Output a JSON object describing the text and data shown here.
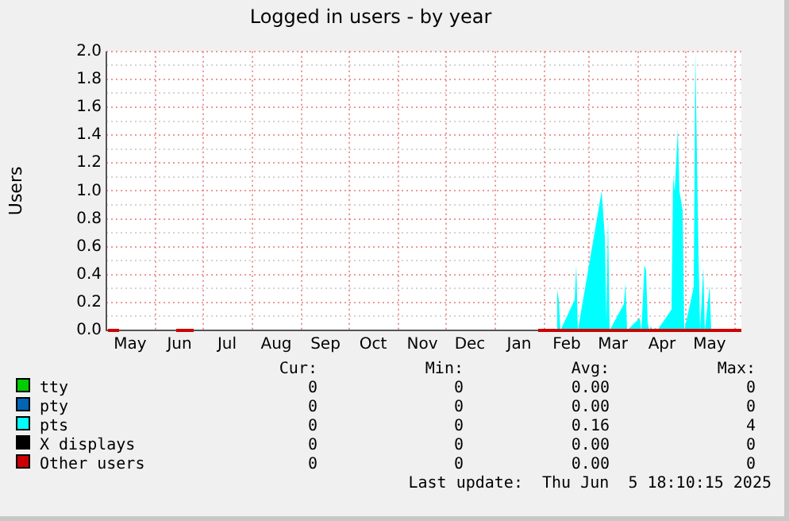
{
  "chart_data": {
    "type": "line",
    "title": "Logged in users - by year",
    "ylabel": "Users",
    "xlim": [
      "2024-05-01",
      "2025-06-05"
    ],
    "xticks": [
      {
        "value": "2024-05-16",
        "label": "May"
      },
      {
        "value": "2024-06-01",
        "label": null
      },
      {
        "value": "2024-06-16",
        "label": "Jun"
      },
      {
        "value": "2024-07-01",
        "label": null
      },
      {
        "value": "2024-07-16",
        "label": "Jul"
      },
      {
        "value": "2024-08-01",
        "label": null
      },
      {
        "value": "2024-08-16",
        "label": "Aug"
      },
      {
        "value": "2024-09-01",
        "label": null
      },
      {
        "value": "2024-09-16",
        "label": "Sep"
      },
      {
        "value": "2024-10-01",
        "label": null
      },
      {
        "value": "2024-10-16",
        "label": "Oct"
      },
      {
        "value": "2024-11-01",
        "label": null
      },
      {
        "value": "2024-11-16",
        "label": "Nov"
      },
      {
        "value": "2024-12-01",
        "label": null
      },
      {
        "value": "2024-12-16",
        "label": "Dec"
      },
      {
        "value": "2025-01-01",
        "label": null
      },
      {
        "value": "2025-01-16",
        "label": "Jan"
      },
      {
        "value": "2025-02-01",
        "label": null
      },
      {
        "value": "2025-02-15",
        "label": "Feb"
      },
      {
        "value": "2025-03-01",
        "label": null
      },
      {
        "value": "2025-03-16",
        "label": "Mar"
      },
      {
        "value": "2025-04-01",
        "label": null
      },
      {
        "value": "2025-04-16",
        "label": "Apr"
      },
      {
        "value": "2025-05-01",
        "label": null
      },
      {
        "value": "2025-05-16",
        "label": "May"
      },
      {
        "value": "2025-06-01",
        "label": null
      }
    ],
    "ylim": [
      0,
      2
    ],
    "yticks": [
      {
        "value": 0,
        "label": "0.0"
      },
      {
        "value": 0.1,
        "label": null
      },
      {
        "value": 0.2,
        "label": "0.2"
      },
      {
        "value": 0.3,
        "label": null
      },
      {
        "value": 0.4,
        "label": "0.4"
      },
      {
        "value": 0.5,
        "label": null
      },
      {
        "value": 0.6,
        "label": "0.6"
      },
      {
        "value": 0.7,
        "label": null
      },
      {
        "value": 0.8,
        "label": "0.8"
      },
      {
        "value": 0.9,
        "label": null
      },
      {
        "value": 1,
        "label": "1.0"
      },
      {
        "value": 1.1,
        "label": null
      },
      {
        "value": 1.2,
        "label": "1.2"
      },
      {
        "value": 1.3,
        "label": null
      },
      {
        "value": 1.4,
        "label": "1.4"
      },
      {
        "value": 1.5,
        "label": null
      },
      {
        "value": 1.6,
        "label": "1.6"
      },
      {
        "value": 1.7,
        "label": null
      },
      {
        "value": 1.8,
        "label": "1.8"
      },
      {
        "value": 1.9,
        "label": null
      },
      {
        "value": 2,
        "label": "2.0"
      }
    ],
    "grid": true,
    "legend": "bottom",
    "series": [
      {
        "name": "tty",
        "color": "#00cc00"
      },
      {
        "name": "pty",
        "color": "#0066b3"
      },
      {
        "name": "pts",
        "color": "#00ffff",
        "type": "area",
        "x": [
          "2025-02-09",
          "2025-02-10",
          "2025-02-11",
          "2025-02-20",
          "2025-02-21",
          "2025-02-22",
          "2025-03-09",
          "2025-03-11",
          "2025-03-12",
          "2025-03-13",
          "2025-03-14",
          "2025-03-23",
          "2025-03-24",
          "2025-03-25",
          "2025-04-02",
          "2025-04-03",
          "2025-04-05",
          "2025-04-06",
          "2025-04-07",
          "2025-04-08",
          "2025-04-09",
          "2025-04-10",
          "2025-04-12",
          "2025-04-13",
          "2025-04-22",
          "2025-04-23",
          "2025-04-24",
          "2025-04-26",
          "2025-04-27",
          "2025-04-29",
          "2025-04-30",
          "2025-05-06",
          "2025-05-07",
          "2025-05-09",
          "2025-05-10",
          "2025-05-12",
          "2025-05-13",
          "2025-05-16",
          "2025-05-17"
        ],
        "values": [
          0.29,
          0.22,
          0,
          0.22,
          0.47,
          0,
          1.0,
          0.67,
          0.07,
          0.8,
          0,
          0.19,
          0.34,
          0,
          0.09,
          0,
          0.47,
          0.43,
          0.05,
          0,
          0.03,
          0,
          0.02,
          0,
          0.15,
          1.1,
          1.0,
          1.45,
          1.0,
          0.86,
          0,
          0.31,
          2.0,
          0.54,
          0,
          0.45,
          0,
          0.32,
          0
        ]
      },
      {
        "name": "X displays",
        "color": "#000000"
      },
      {
        "name": "Other users",
        "color": "#cc0000",
        "x": [
          "2024-05-02",
          "2024-05-09",
          "2024-05-10",
          "2024-06-14",
          "2024-06-25",
          "2024-06-26",
          "2025-01-28",
          "2025-06-05"
        ],
        "values": [
          0,
          0,
          null,
          0,
          0,
          null,
          0,
          0
        ]
      }
    ],
    "annotations": [
      "Cur:",
      "Min:",
      "Avg:",
      "Max:",
      "0",
      "0",
      "0.00",
      "0",
      "0",
      "0",
      "0.00",
      "0",
      "0",
      "0",
      "0.16",
      "4",
      "0",
      "0",
      "0.00",
      "0",
      "0",
      "0",
      "0.00",
      "0",
      "Last update:  Thu Jun  5 18:10:15 2025"
    ]
  }
}
